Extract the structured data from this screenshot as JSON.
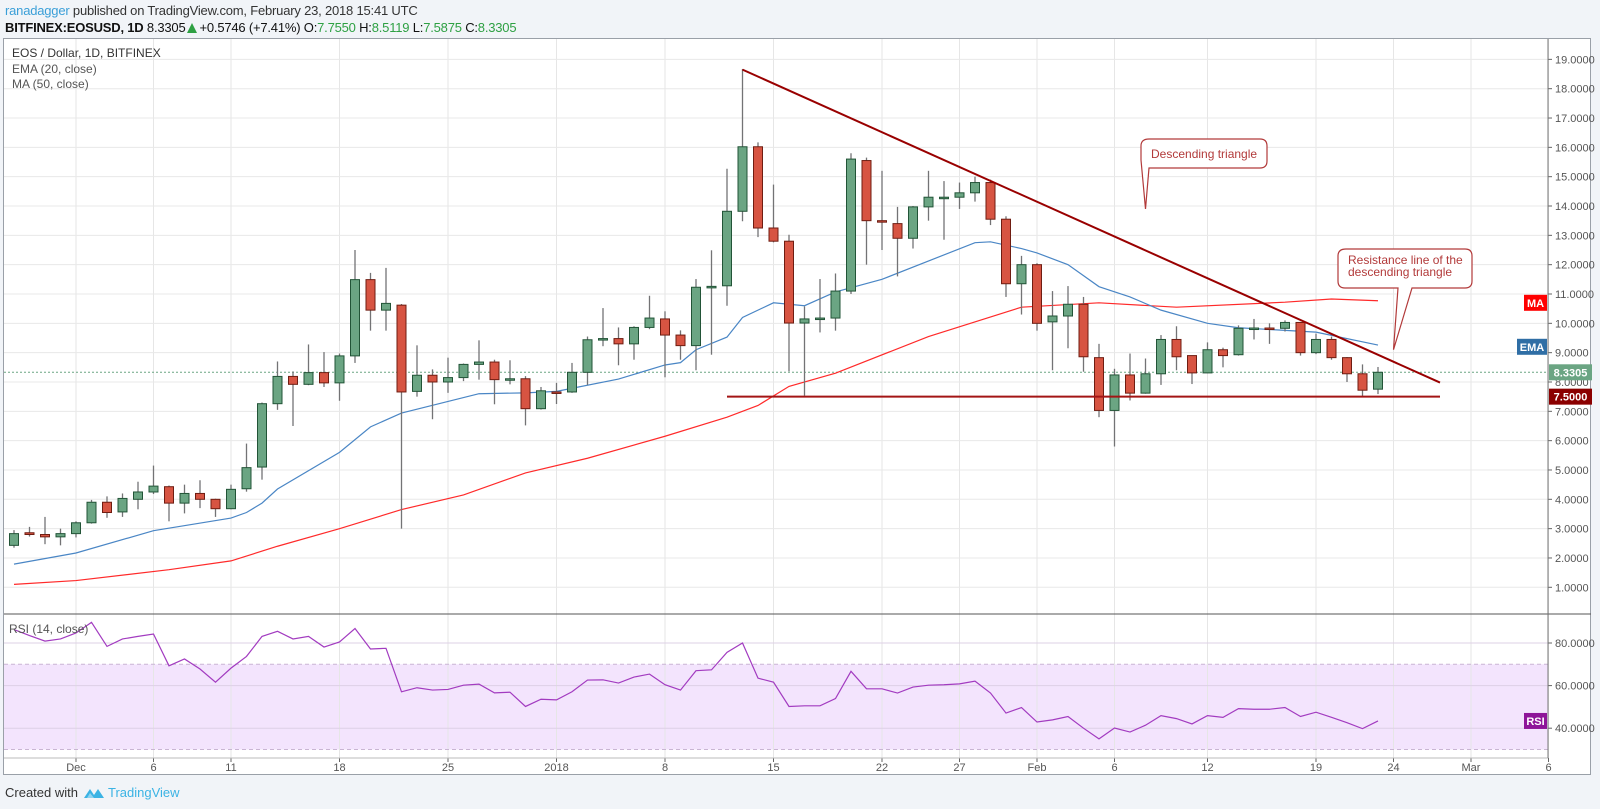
{
  "header": {
    "author": "ranadagger",
    "published_text": " published on TradingView.com, February 23, 2018 15:41 UTC",
    "symbol": "BITFINEX:EOSUSD, 1D",
    "last": "8.3305",
    "change": "+0.5746 (+7.41%)",
    "o_label": "O:",
    "o": "7.7550",
    "h_label": "H:",
    "h": "8.5119",
    "l_label": "L:",
    "l": "7.5875",
    "c_label": "C:",
    "c": "8.3305",
    "direction_icon": "triangle-up-icon"
  },
  "legend": {
    "title": "EOS / Dollar, 1D, BITFINEX",
    "ema": "EMA (20, close)",
    "ma": "MA (50, close)",
    "rsi": "RSI (14, close)"
  },
  "footer": {
    "created_with": "Created with",
    "brand": "TradingView",
    "logo_icon": "tradingview-logo-icon"
  },
  "colors": {
    "up": "#6ba583",
    "up_border": "#225437",
    "down": "#d75442",
    "down_border": "#6f1d12",
    "wick": "#737375",
    "ema": "#4a86c5",
    "ma": "#ff2a2a",
    "rsi": "#a23bc0",
    "rsi_band": "#f3e4fd",
    "trendline": "#990000",
    "support": "#a31515",
    "price_badge": "#6ba583",
    "support_badge": "#8b0000",
    "ma_badge": "#ff0000",
    "ema_badge": "#2f6ea5",
    "rsi_badge": "#8e1599",
    "annotation": "#b23a3a"
  },
  "chart_data": {
    "type": "candlestick",
    "title": "EOS / Dollar, 1D, BITFINEX",
    "price_axis": {
      "range": [
        0,
        19.5
      ],
      "ticks": [
        "1.0000",
        "2.0000",
        "3.0000",
        "4.0000",
        "5.0000",
        "6.0000",
        "7.0000",
        "8.0000",
        "9.0000",
        "10.0000",
        "11.0000",
        "12.0000",
        "13.0000",
        "14.0000",
        "15.0000",
        "16.0000",
        "17.0000",
        "18.0000",
        "19.0000"
      ]
    },
    "date_axis": {
      "ticks": [
        {
          "date": "2017-12-01",
          "label": "Dec"
        },
        {
          "date": "2017-12-06",
          "label": "6"
        },
        {
          "date": "2017-12-11",
          "label": "11"
        },
        {
          "date": "2017-12-18",
          "label": "18"
        },
        {
          "date": "2017-12-25",
          "label": "25"
        },
        {
          "date": "2018-01-01",
          "label": "2018"
        },
        {
          "date": "2018-01-08",
          "label": "8"
        },
        {
          "date": "2018-01-15",
          "label": "15"
        },
        {
          "date": "2018-01-22",
          "label": "22"
        },
        {
          "date": "2018-01-27",
          "label": "27"
        },
        {
          "date": "2018-02-01",
          "label": "Feb"
        },
        {
          "date": "2018-02-06",
          "label": "6"
        },
        {
          "date": "2018-02-12",
          "label": "12"
        },
        {
          "date": "2018-02-19",
          "label": "19"
        },
        {
          "date": "2018-02-24",
          "label": "24"
        },
        {
          "date": "2018-03-01",
          "label": "Mar"
        },
        {
          "date": "2018-03-06",
          "label": "6"
        }
      ]
    },
    "grid": true,
    "candles_fields": [
      "date",
      "open",
      "high",
      "low",
      "close"
    ],
    "candles": [
      [
        "2017-11-27",
        2.43,
        2.95,
        2.35,
        2.83
      ],
      [
        "2017-11-28",
        2.86,
        3.06,
        2.73,
        2.8
      ],
      [
        "2017-11-29",
        2.8,
        3.4,
        2.47,
        2.72
      ],
      [
        "2017-11-30",
        2.72,
        3.0,
        2.43,
        2.83
      ],
      [
        "2017-12-01",
        2.83,
        3.25,
        2.7,
        3.2
      ],
      [
        "2017-12-02",
        3.2,
        3.98,
        3.17,
        3.9
      ],
      [
        "2017-12-03",
        3.9,
        4.1,
        3.37,
        3.55
      ],
      [
        "2017-12-04",
        3.57,
        4.2,
        3.4,
        4.03
      ],
      [
        "2017-12-05",
        4.0,
        4.6,
        3.66,
        4.25
      ],
      [
        "2017-12-06",
        4.25,
        5.15,
        4.18,
        4.45
      ],
      [
        "2017-12-07",
        4.43,
        4.47,
        3.25,
        3.87
      ],
      [
        "2017-12-08",
        3.87,
        4.5,
        3.52,
        4.2
      ],
      [
        "2017-12-09",
        4.2,
        4.65,
        3.7,
        4.0
      ],
      [
        "2017-12-10",
        4.0,
        4.02,
        3.4,
        3.68
      ],
      [
        "2017-12-11",
        3.68,
        4.5,
        3.66,
        4.34
      ],
      [
        "2017-12-12",
        4.36,
        5.9,
        4.26,
        5.08
      ],
      [
        "2017-12-13",
        5.1,
        7.3,
        4.67,
        7.26
      ],
      [
        "2017-12-14",
        7.26,
        8.7,
        7.05,
        8.19
      ],
      [
        "2017-12-15",
        8.19,
        8.36,
        6.5,
        7.92
      ],
      [
        "2017-12-16",
        7.92,
        9.28,
        7.89,
        8.32
      ],
      [
        "2017-12-17",
        8.32,
        9.02,
        7.83,
        7.97
      ],
      [
        "2017-12-18",
        7.97,
        8.97,
        7.36,
        8.89
      ],
      [
        "2017-12-19",
        8.89,
        12.5,
        8.65,
        11.49
      ],
      [
        "2017-12-20",
        11.49,
        11.72,
        9.75,
        10.45
      ],
      [
        "2017-12-21",
        10.45,
        11.89,
        9.75,
        10.68
      ],
      [
        "2017-12-22",
        10.62,
        10.66,
        3.0,
        7.66
      ],
      [
        "2017-12-23",
        7.68,
        9.25,
        7.5,
        8.23
      ],
      [
        "2017-12-24",
        8.23,
        8.43,
        6.73,
        8.0
      ],
      [
        "2017-12-25",
        8.0,
        8.83,
        7.63,
        8.15
      ],
      [
        "2017-12-26",
        8.15,
        8.63,
        8.03,
        8.6
      ],
      [
        "2017-12-27",
        8.6,
        9.42,
        8.08,
        8.68
      ],
      [
        "2017-12-28",
        8.68,
        8.76,
        7.24,
        8.08
      ],
      [
        "2017-12-29",
        8.08,
        8.74,
        7.92,
        8.11
      ],
      [
        "2017-12-30",
        8.11,
        8.2,
        6.52,
        7.09
      ],
      [
        "2017-12-31",
        7.09,
        7.83,
        7.06,
        7.7
      ],
      [
        "2018-01-01",
        7.66,
        7.97,
        7.25,
        7.63
      ],
      [
        "2018-01-02",
        7.66,
        8.65,
        7.63,
        8.33
      ],
      [
        "2018-01-03",
        8.33,
        9.55,
        7.9,
        9.44
      ],
      [
        "2018-01-04",
        9.44,
        10.52,
        9.22,
        9.48
      ],
      [
        "2018-01-05",
        9.48,
        9.86,
        8.57,
        9.3
      ],
      [
        "2018-01-06",
        9.3,
        9.9,
        8.76,
        9.86
      ],
      [
        "2018-01-07",
        9.86,
        10.94,
        9.8,
        10.18
      ],
      [
        "2018-01-08",
        10.15,
        10.41,
        8.16,
        9.6
      ],
      [
        "2018-01-09",
        9.6,
        9.76,
        8.76,
        9.24
      ],
      [
        "2018-01-10",
        9.24,
        11.51,
        8.4,
        11.23
      ],
      [
        "2018-01-11",
        11.23,
        12.49,
        8.93,
        11.26
      ],
      [
        "2018-01-12",
        11.28,
        15.27,
        10.6,
        13.82
      ],
      [
        "2018-01-13",
        13.82,
        18.67,
        13.48,
        16.02
      ],
      [
        "2018-01-14",
        16.02,
        16.17,
        12.94,
        13.25
      ],
      [
        "2018-01-15",
        13.25,
        14.73,
        12.76,
        12.8
      ],
      [
        "2018-01-16",
        12.8,
        13.02,
        8.36,
        10.01
      ],
      [
        "2018-01-17",
        10.01,
        10.58,
        7.53,
        10.15
      ],
      [
        "2018-01-18",
        10.15,
        11.51,
        9.69,
        10.18
      ],
      [
        "2018-01-19",
        10.18,
        11.7,
        9.75,
        11.1
      ],
      [
        "2018-01-20",
        11.1,
        15.8,
        11.0,
        15.6
      ],
      [
        "2018-01-21",
        15.55,
        15.65,
        12.0,
        13.5
      ],
      [
        "2018-01-22",
        13.5,
        15.2,
        12.5,
        13.45
      ],
      [
        "2018-01-23",
        13.4,
        13.97,
        11.6,
        12.9
      ],
      [
        "2018-01-24",
        12.9,
        14.0,
        12.55,
        13.97
      ],
      [
        "2018-01-25",
        13.97,
        15.2,
        13.5,
        14.3
      ],
      [
        "2018-01-26",
        14.3,
        14.85,
        12.85,
        14.3
      ],
      [
        "2018-01-27",
        14.3,
        14.8,
        13.9,
        14.45
      ],
      [
        "2018-01-28",
        14.45,
        15.0,
        14.15,
        14.8
      ],
      [
        "2018-01-29",
        14.8,
        14.9,
        13.35,
        13.55
      ],
      [
        "2018-01-30",
        13.55,
        13.65,
        10.9,
        11.35
      ],
      [
        "2018-01-31",
        11.35,
        12.3,
        10.3,
        12.0
      ],
      [
        "2018-02-01",
        12.0,
        12.05,
        9.75,
        10.0
      ],
      [
        "2018-02-02",
        10.05,
        11.1,
        8.4,
        10.25
      ],
      [
        "2018-02-03",
        10.25,
        11.27,
        9.15,
        10.65
      ],
      [
        "2018-02-04",
        10.65,
        10.9,
        8.35,
        8.86
      ],
      [
        "2018-02-05",
        8.83,
        9.3,
        6.8,
        7.03
      ],
      [
        "2018-02-06",
        7.03,
        8.45,
        5.8,
        8.24
      ],
      [
        "2018-02-07",
        8.24,
        8.97,
        7.37,
        7.62
      ],
      [
        "2018-02-08",
        7.62,
        8.8,
        7.6,
        8.28
      ],
      [
        "2018-02-09",
        8.28,
        9.6,
        7.9,
        9.45
      ],
      [
        "2018-02-10",
        9.45,
        9.9,
        8.4,
        8.86
      ],
      [
        "2018-02-11",
        8.9,
        8.9,
        7.93,
        8.31
      ],
      [
        "2018-02-12",
        8.31,
        9.35,
        8.3,
        9.1
      ],
      [
        "2018-02-13",
        9.1,
        9.17,
        8.5,
        8.9
      ],
      [
        "2018-02-14",
        8.93,
        9.93,
        8.9,
        9.83
      ],
      [
        "2018-02-15",
        9.83,
        10.15,
        9.45,
        9.84
      ],
      [
        "2018-02-16",
        9.84,
        10.0,
        9.3,
        9.82
      ],
      [
        "2018-02-17",
        9.83,
        10.1,
        9.72,
        10.03
      ],
      [
        "2018-02-18",
        10.03,
        10.05,
        8.9,
        9.0
      ],
      [
        "2018-02-19",
        9.0,
        9.65,
        8.95,
        9.45
      ],
      [
        "2018-02-20",
        9.45,
        9.55,
        8.76,
        8.83
      ],
      [
        "2018-02-21",
        8.83,
        8.85,
        8.0,
        8.28
      ],
      [
        "2018-02-22",
        8.28,
        8.6,
        7.5,
        7.72
      ],
      [
        "2018-02-23",
        7.755,
        8.5119,
        7.5875,
        8.3305
      ]
    ],
    "ema": {
      "name": "EMA",
      "points": [
        [
          "2017-11-27",
          1.79
        ],
        [
          "2017-12-01",
          2.17
        ],
        [
          "2017-12-06",
          2.93
        ],
        [
          "2017-12-11",
          3.36
        ],
        [
          "2017-12-12",
          3.55
        ],
        [
          "2017-12-13",
          3.87
        ],
        [
          "2017-12-14",
          4.35
        ],
        [
          "2017-12-18",
          5.6
        ],
        [
          "2017-12-20",
          6.47
        ],
        [
          "2017-12-22",
          6.94
        ],
        [
          "2017-12-27",
          7.6
        ],
        [
          "2017-12-30",
          7.63
        ],
        [
          "2018-01-01",
          7.68
        ],
        [
          "2018-01-05",
          8.1
        ],
        [
          "2018-01-08",
          8.58
        ],
        [
          "2018-01-09",
          8.66
        ],
        [
          "2018-01-10",
          9.1
        ],
        [
          "2018-01-12",
          9.53
        ],
        [
          "2018-01-13",
          10.2
        ],
        [
          "2018-01-15",
          10.7
        ],
        [
          "2018-01-17",
          10.6
        ],
        [
          "2018-01-19",
          11.07
        ],
        [
          "2018-01-22",
          11.5
        ],
        [
          "2018-01-28",
          12.75
        ],
        [
          "2018-01-29",
          12.78
        ],
        [
          "2018-01-31",
          12.55
        ],
        [
          "2018-02-01",
          12.4
        ],
        [
          "2018-02-03",
          12.0
        ],
        [
          "2018-02-05",
          11.25
        ],
        [
          "2018-02-07",
          10.9
        ],
        [
          "2018-02-09",
          10.45
        ],
        [
          "2018-02-12",
          10.0
        ],
        [
          "2018-02-14",
          9.85
        ],
        [
          "2018-02-19",
          9.7
        ],
        [
          "2018-02-23",
          9.26
        ]
      ]
    },
    "ma": {
      "name": "MA",
      "points": [
        [
          "2017-11-27",
          1.1
        ],
        [
          "2017-12-01",
          1.23
        ],
        [
          "2017-12-07",
          1.6
        ],
        [
          "2017-12-11",
          1.9
        ],
        [
          "2017-12-14",
          2.4
        ],
        [
          "2017-12-18",
          3.0
        ],
        [
          "2017-12-22",
          3.65
        ],
        [
          "2017-12-26",
          4.15
        ],
        [
          "2017-12-30",
          4.9
        ],
        [
          "2018-01-03",
          5.4
        ],
        [
          "2018-01-08",
          6.15
        ],
        [
          "2018-01-12",
          6.8
        ],
        [
          "2018-01-14",
          7.2
        ],
        [
          "2018-01-16",
          7.85
        ],
        [
          "2018-01-19",
          8.3
        ],
        [
          "2018-01-25",
          9.55
        ],
        [
          "2018-01-31",
          10.55
        ],
        [
          "2018-02-05",
          10.7
        ],
        [
          "2018-02-10",
          10.55
        ],
        [
          "2018-02-17",
          10.72
        ],
        [
          "2018-02-20",
          10.83
        ],
        [
          "2018-02-23",
          10.77
        ]
      ]
    },
    "last_price": {
      "value": 8.3305,
      "label": "8.3305"
    },
    "support": {
      "value": 7.5,
      "label": "7.5000",
      "from": "2018-01-12",
      "to": "2018-02-27"
    },
    "trendline": {
      "from": [
        "2018-01-13",
        18.65
      ],
      "to": [
        "2018-02-27",
        7.98
      ]
    },
    "annotations": [
      {
        "text": "Descending triangle",
        "points_to": [
          "2018-02-08",
          13.9
        ]
      },
      {
        "text": "Resistance line of the descending triangle",
        "points_to": [
          "2018-02-24",
          9.1
        ]
      }
    ],
    "badges": {
      "ma": "MA",
      "ema": "EMA",
      "rsi": "RSI"
    },
    "rsi": {
      "name": "RSI",
      "range": [
        25,
        95
      ],
      "overbought": 70,
      "oversold": 30,
      "ticks": [
        "40.0000",
        "60.0000",
        "80.0000"
      ],
      "values": [
        86.3,
        83.5,
        80.9,
        81.9,
        84.7,
        89.7,
        78.4,
        81.9,
        83.1,
        84.2,
        69.3,
        72.5,
        67.8,
        61.6,
        68.2,
        73.7,
        83.1,
        85.5,
        81.9,
        83.1,
        78.1,
        80.5,
        86.8,
        77.2,
        77.5,
        57.1,
        59.0,
        57.9,
        58.2,
        60.2,
        60.7,
        56.6,
        56.9,
        50.2,
        53.6,
        53.3,
        57.1,
        62.6,
        62.7,
        61.2,
        64.0,
        65.4,
        60.4,
        57.9,
        67.0,
        67.4,
        75.6,
        80.0,
        63.5,
        61.6,
        50.2,
        50.5,
        50.5,
        53.9,
        66.7,
        58.5,
        58.5,
        56.5,
        59.3,
        60.2,
        60.4,
        60.8,
        62.1,
        56.5,
        47.1,
        49.7,
        42.9,
        43.9,
        45.5,
        40.0,
        35.0,
        40.1,
        38.2,
        41.4,
        45.9,
        44.5,
        42.0,
        45.9,
        45.1,
        49.2,
        48.9,
        48.9,
        49.7,
        45.5,
        47.5,
        45.1,
        42.6,
        39.8,
        43.4
      ]
    }
  }
}
